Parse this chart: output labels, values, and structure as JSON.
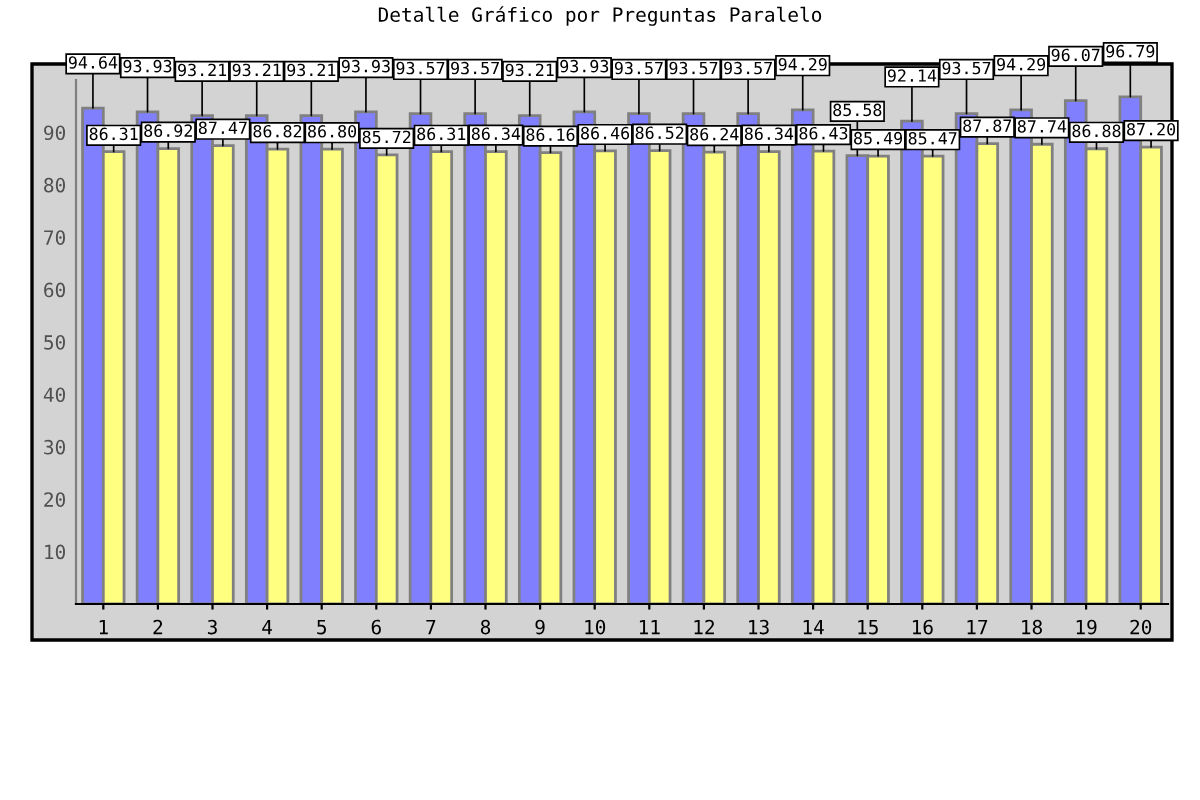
{
  "chart_data": {
    "type": "bar",
    "title": "Detalle Gráfico por Preguntas Paralelo",
    "categories": [
      "1",
      "2",
      "3",
      "4",
      "5",
      "6",
      "7",
      "8",
      "9",
      "10",
      "11",
      "12",
      "13",
      "14",
      "15",
      "16",
      "17",
      "18",
      "19",
      "20"
    ],
    "series": [
      {
        "color": "#8080ff",
        "values": [
          94.64,
          93.93,
          93.21,
          93.21,
          93.21,
          93.93,
          93.57,
          93.57,
          93.21,
          93.93,
          93.57,
          93.57,
          93.57,
          94.29,
          85.58,
          92.14,
          93.57,
          94.29,
          96.07,
          96.79
        ],
        "value_labels": [
          "94.64",
          "93.93",
          "93.21",
          "93.21",
          "93.21",
          "93.93",
          "93.57",
          "93.57",
          "93.21",
          "93.93",
          "93.57",
          "93.57",
          "93.57",
          "94.29",
          "85.58",
          "92.14",
          "93.57",
          "94.29",
          "96.07",
          "96.79"
        ]
      },
      {
        "color": "#ffff80",
        "values": [
          86.31,
          86.92,
          87.47,
          86.82,
          86.8,
          85.72,
          86.31,
          86.34,
          86.16,
          86.46,
          86.52,
          86.24,
          86.34,
          86.43,
          85.49,
          85.47,
          87.87,
          87.74,
          86.88,
          87.2
        ],
        "value_labels": [
          "86.31",
          "86.92",
          "87.47",
          "86.82",
          "86.80",
          "85.72",
          "86.31",
          "86.34",
          "86.16",
          "86.46",
          "86.52",
          "86.24",
          "86.34",
          "86.43",
          "85.49",
          "85.47",
          "87.87",
          "87.74",
          "86.88",
          "87.20"
        ]
      }
    ],
    "ylim": [
      0,
      100
    ],
    "yticks": [
      10,
      20,
      30,
      40,
      50,
      60,
      70,
      80,
      90
    ],
    "grid": false,
    "legend": false
  }
}
